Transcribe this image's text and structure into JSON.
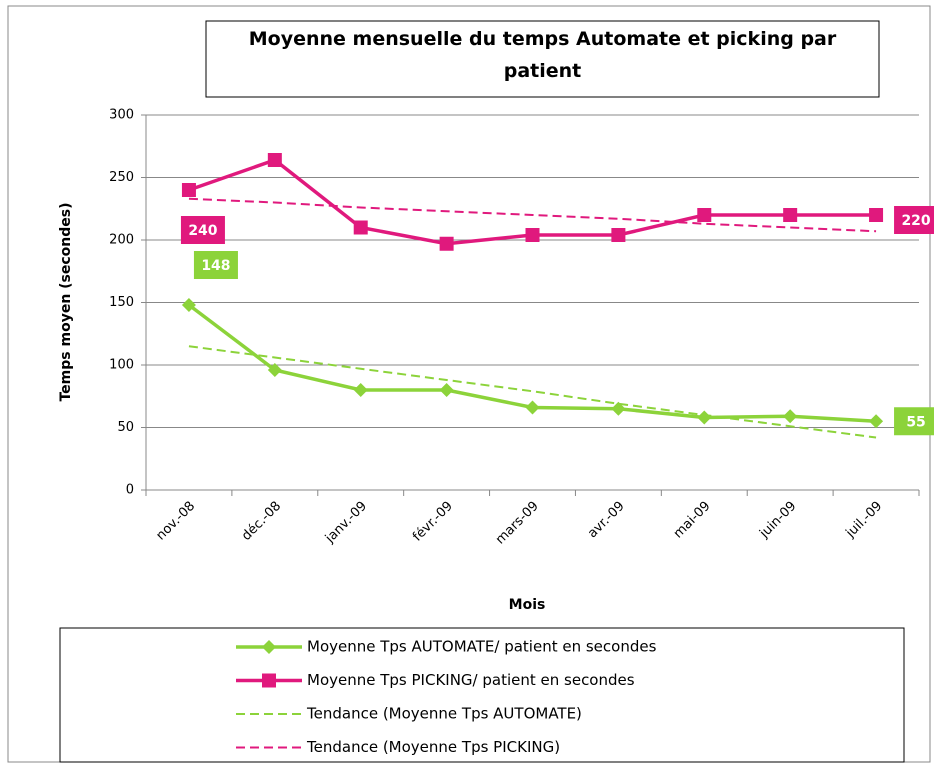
{
  "chart_data": {
    "type": "line",
    "title": "Moyenne mensuelle du temps Automate et picking par patient",
    "x_label": "Mois",
    "y_label": "Temps moyen (secondes)",
    "categories": [
      "nov.-08",
      "déc.-08",
      "janv.-09",
      "févr.-09",
      "mars-09",
      "avr.-09",
      "mai-09",
      "juin-09",
      "juil.-09"
    ],
    "ylim": [
      0,
      300
    ],
    "yticks": [
      0,
      50,
      100,
      150,
      200,
      250,
      300
    ],
    "legend": "bottom",
    "series": [
      {
        "name": "Moyenne Tps AUTOMATE/ patient en secondes",
        "color": "#8cd33a",
        "marker": "diamond",
        "style": "solid",
        "values": [
          148,
          96,
          80,
          80,
          66,
          65,
          58,
          59,
          55
        ]
      },
      {
        "name": "Moyenne Tps PICKING/ patient en secondes",
        "color": "#e0197d",
        "marker": "square",
        "style": "solid",
        "values": [
          240,
          264,
          210,
          197,
          204,
          204,
          220,
          220,
          220
        ]
      },
      {
        "name": "Tendance (Moyenne Tps AUTOMATE)",
        "color": "#8cd33a",
        "marker": "none",
        "style": "dashed",
        "values": [
          115,
          106,
          97,
          88,
          79,
          69,
          60,
          51,
          42
        ]
      },
      {
        "name": "Tendance (Moyenne Tps PICKING)",
        "color": "#e0197d",
        "marker": "none",
        "style": "dashed",
        "values": [
          233,
          230,
          226,
          223,
          220,
          217,
          213,
          210,
          207
        ]
      }
    ]
  }
}
